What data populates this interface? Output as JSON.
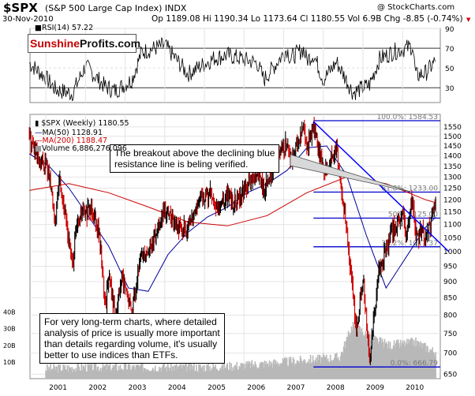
{
  "header": {
    "ticker": "$SPX",
    "name": "(S&P 500 Large Cap Index) INDX",
    "credit": "@ StockCharts.com",
    "date": "30-Nov-2010",
    "quote": "Op 1189.08 Hi 1190.34 Lo 1173.64 Cl 1180.55 Vol 6.9B Chg -8.85 (-0.74%)",
    "arrow": "▼"
  },
  "logo": {
    "part1": "Sunshine",
    "part2": "Profits.com"
  },
  "colors": {
    "price_up": "#000000",
    "price_down": "#cc0000",
    "ma50": "#000099",
    "ma200": "#cc0000",
    "volume": "#b8b8b8",
    "fib_lines": "#0000cc",
    "resistance_line": "#0000ff"
  },
  "annotations": {
    "breakout": [
      "The breakout above the declining blue",
      "resistance line is beling verified."
    ],
    "longterm": [
      "For very long-term charts, where detailed",
      "analysis of price is usually more important",
      "than details regarding volume, it's usually",
      "better to use indices than ETFs."
    ]
  },
  "chart_data": [
    {
      "type": "line",
      "title": "RSI(14) 57.22",
      "ylim": [
        15,
        90
      ],
      "yticks": [
        "90",
        "70",
        "50",
        "30"
      ],
      "levels": [
        70,
        30
      ],
      "x": [
        "2000-08",
        "2001-01",
        "2001-04",
        "2001-09",
        "2002-01",
        "2002-07",
        "2002-10",
        "2003-03",
        "2003-06",
        "2004-01",
        "2004-08",
        "2005-04",
        "2005-08",
        "2006-05",
        "2006-07",
        "2007-02",
        "2007-03",
        "2007-07",
        "2007-08",
        "2007-10",
        "2008-01",
        "2008-05",
        "2008-07",
        "2008-10",
        "2009-03",
        "2009-06",
        "2009-10",
        "2010-04",
        "2010-05",
        "2010-08",
        "2010-11"
      ],
      "values": [
        55,
        40,
        28,
        24,
        52,
        31,
        27,
        38,
        66,
        73,
        44,
        60,
        63,
        55,
        38,
        69,
        60,
        69,
        58,
        64,
        38,
        56,
        44,
        25,
        33,
        59,
        66,
        72,
        42,
        45,
        57
      ]
    },
    {
      "type": "line",
      "title": "$SPX (Weekly) 1180.55",
      "ylabel": "",
      "scale": "log",
      "ylim": [
        640,
        1620
      ],
      "yticks": [
        1550,
        1500,
        1450,
        1400,
        1350,
        1300,
        1250,
        1200,
        1150,
        1100,
        1050,
        1000,
        950,
        900,
        850,
        800,
        750,
        700,
        650
      ],
      "xticks": [
        "2001",
        "2002",
        "2003",
        "2004",
        "2005",
        "2006",
        "2007",
        "2008",
        "2009",
        "2010"
      ],
      "legend": [
        "MA(50) 1128.91",
        "MA(200) 1188.47",
        "Volume 6,886,276,096"
      ],
      "series": [
        {
          "name": "$SPX (Weekly)",
          "x": [
            "2000-08",
            "2000-09",
            "2000-11",
            "2001-01",
            "2001-02",
            "2001-04",
            "2001-05",
            "2001-06",
            "2001-09",
            "2001-10",
            "2001-12",
            "2002-01",
            "2002-03",
            "2002-05",
            "2002-07",
            "2002-08",
            "2002-10",
            "2002-12",
            "2003-03",
            "2003-06",
            "2003-09",
            "2004-01",
            "2004-03",
            "2004-05",
            "2004-08",
            "2004-12",
            "2005-03",
            "2005-04",
            "2005-08",
            "2005-10",
            "2006-05",
            "2006-07",
            "2006-11",
            "2007-02",
            "2007-03",
            "2007-07",
            "2007-08",
            "2007-10",
            "2008-01",
            "2008-05",
            "2008-07",
            "2008-10",
            "2008-11",
            "2009-01",
            "2009-03",
            "2009-06",
            "2009-10",
            "2010-01",
            "2010-02",
            "2010-04",
            "2010-05",
            "2010-07",
            "2010-08",
            "2010-11"
          ],
          "values": [
            1510,
            1460,
            1350,
            1370,
            1300,
            1110,
            1300,
            1220,
            945,
            1070,
            1150,
            1140,
            1170,
            1080,
            820,
            920,
            790,
            910,
            810,
            990,
            1020,
            1150,
            1130,
            1090,
            1080,
            1210,
            1230,
            1150,
            1230,
            1180,
            1320,
            1230,
            1400,
            1460,
            1380,
            1540,
            1430,
            1560,
            1330,
            1420,
            1200,
            850,
            760,
            910,
            680,
            940,
            1080,
            1140,
            1060,
            1210,
            1050,
            1080,
            1040,
            1180
          ]
        },
        {
          "name": "MA(50)",
          "x": [
            "2000-08",
            "2001-02",
            "2001-08",
            "2002-02",
            "2002-08",
            "2003-02",
            "2003-08",
            "2004-02",
            "2004-08",
            "2005-02",
            "2005-08",
            "2006-02",
            "2006-08",
            "2007-02",
            "2007-08",
            "2008-02",
            "2008-08",
            "2009-02",
            "2009-08",
            "2010-02",
            "2010-08",
            "2010-11"
          ],
          "values": [
            1410,
            1350,
            1250,
            1130,
            1020,
            880,
            870,
            990,
            1070,
            1130,
            1170,
            1230,
            1270,
            1330,
            1440,
            1450,
            1310,
            1060,
            880,
            980,
            1090,
            1129
          ]
        },
        {
          "name": "MA(200)",
          "x": [
            "2000-08",
            "2001-08",
            "2002-08",
            "2003-08",
            "2004-08",
            "2005-08",
            "2006-08",
            "2007-08",
            "2008-08",
            "2009-08",
            "2010-08",
            "2010-11"
          ],
          "values": [
            1240,
            1270,
            1230,
            1170,
            1110,
            1095,
            1135,
            1230,
            1300,
            1270,
            1200,
            1188
          ]
        }
      ],
      "fibonacci": [
        {
          "label": "100.0%: 1584.53",
          "value": 1584.53
        },
        {
          "label": "61.8%: 1233.00",
          "value": 1233.0
        },
        {
          "label": "50%: 1125.00",
          "value": 1125.0
        },
        {
          "label": "38.2%: 1017.37",
          "value": 1017.37
        },
        {
          "label": "0.0%: 666.79",
          "value": 666.79
        }
      ],
      "resistance_line": {
        "from": {
          "x": "2007-10",
          "y": 1580
        },
        "to": {
          "x": "2011-03",
          "y": 1000
        }
      }
    },
    {
      "type": "bar",
      "title": "Volume",
      "yticks": [
        "40B",
        "30B",
        "20B",
        "10B"
      ],
      "ylim": [
        0,
        45
      ],
      "x": [
        "2001",
        "2002",
        "2003",
        "2004",
        "2005",
        "2006",
        "2007",
        "2008-06",
        "2008-10",
        "2009-03",
        "2009-09",
        "2010-05",
        "2010-11"
      ],
      "values": [
        6,
        7,
        7,
        7,
        7,
        8,
        10,
        13,
        33,
        25,
        20,
        22,
        16
      ]
    }
  ]
}
